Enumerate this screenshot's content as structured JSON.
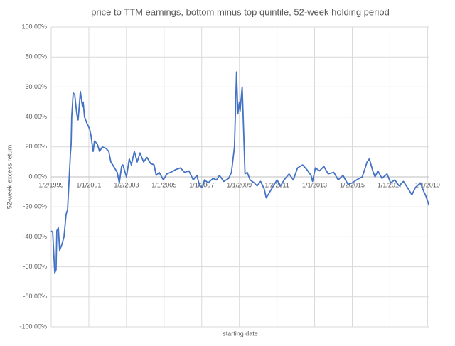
{
  "chart_data": {
    "type": "line",
    "title": "price to TTM earnings, bottom minus top quintile, 52-week holding period",
    "xlabel": "starting date",
    "ylabel": "52-week excess return",
    "x": [
      1999.0,
      1999.08,
      1999.19,
      1999.26,
      1999.3,
      1999.38,
      1999.45,
      1999.57,
      1999.68,
      1999.79,
      1999.87,
      2000.02,
      2000.06,
      2000.09,
      2000.17,
      2000.25,
      2000.36,
      2000.43,
      2000.51,
      2000.55,
      2000.66,
      2000.7,
      2000.77,
      2000.89,
      2001.04,
      2001.11,
      2001.23,
      2001.3,
      2001.45,
      2001.57,
      2001.72,
      2001.91,
      2002.06,
      2002.17,
      2002.32,
      2002.51,
      2002.62,
      2002.74,
      2002.81,
      2003.0,
      2003.15,
      2003.26,
      2003.42,
      2003.57,
      2003.72,
      2003.91,
      2004.09,
      2004.28,
      2004.47,
      2004.58,
      2004.74,
      2004.96,
      2005.15,
      2005.34,
      2005.64,
      2005.87,
      2006.09,
      2006.32,
      2006.55,
      2006.74,
      2006.89,
      2007.04,
      2007.15,
      2007.34,
      2007.6,
      2007.79,
      2007.94,
      2008.17,
      2008.43,
      2008.58,
      2008.74,
      2008.85,
      2008.92,
      2009.0,
      2009.04,
      2009.15,
      2009.23,
      2009.3,
      2009.42,
      2009.57,
      2009.79,
      2009.94,
      2010.13,
      2010.32,
      2010.43,
      2010.62,
      2010.81,
      2011.0,
      2011.19,
      2011.38,
      2011.64,
      2011.87,
      2012.09,
      2012.36,
      2012.58,
      2012.81,
      2012.89,
      2013.04,
      2013.26,
      2013.49,
      2013.72,
      2014.02,
      2014.25,
      2014.51,
      2014.77,
      2015.0,
      2015.23,
      2015.53,
      2015.79,
      2015.91,
      2016.09,
      2016.21,
      2016.36,
      2016.58,
      2016.85,
      2017.04,
      2017.26,
      2017.49,
      2017.72,
      2017.98,
      2018.17,
      2018.36,
      2018.62,
      2018.81,
      2018.92,
      2019.08
    ],
    "series": [
      {
        "name": "52-week excess return",
        "color": "#4472c4",
        "values": [
          -36,
          -37,
          -64,
          -62,
          -36,
          -34,
          -49,
          -45,
          -40,
          -25,
          -22,
          15,
          22,
          40,
          56,
          55,
          42,
          38,
          50,
          57,
          47,
          50,
          40,
          36,
          32,
          28,
          17,
          24,
          22,
          17,
          20,
          19,
          17,
          10,
          7,
          3,
          -4,
          7,
          8,
          0,
          12,
          8,
          17,
          10,
          16,
          10,
          13,
          9,
          8,
          1,
          3,
          -2,
          2,
          3,
          5,
          6,
          3,
          4,
          -2,
          1,
          -6,
          -7,
          -2,
          -4,
          -1,
          -2,
          1,
          -3,
          -1,
          3,
          20,
          70,
          42,
          50,
          44,
          60,
          30,
          2,
          3,
          -2,
          -4,
          -6,
          -3,
          -8,
          -14,
          -10,
          -6,
          -2,
          -6,
          -2,
          2,
          -2,
          6,
          8,
          5,
          1,
          -3,
          6,
          4,
          7,
          2,
          3,
          -2,
          1,
          -5,
          -4,
          -2,
          0,
          10,
          12,
          4,
          0,
          4,
          -1,
          2,
          -4,
          -2,
          -6,
          -3,
          -8,
          -12,
          -7,
          -4,
          -10,
          -13,
          -19
        ]
      }
    ],
    "xlim": [
      1999,
      2019.1
    ],
    "xticks": [
      {
        "value": 1999,
        "label": "1/2/1999"
      },
      {
        "value": 2001,
        "label": "1/1/2001"
      },
      {
        "value": 2003,
        "label": "1/2/2003"
      },
      {
        "value": 2005,
        "label": "1/1/2005"
      },
      {
        "value": 2007,
        "label": "1/1/2007"
      },
      {
        "value": 2009,
        "label": "1/1/2009"
      },
      {
        "value": 2011,
        "label": "1/2/2011"
      },
      {
        "value": 2013,
        "label": "1/1/2013"
      },
      {
        "value": 2015,
        "label": "1/2/2015"
      },
      {
        "value": 2017,
        "label": "1/1/2017"
      },
      {
        "value": 2019,
        "label": "1/1/2019"
      }
    ],
    "ylim": [
      -100,
      100
    ],
    "yticks": [
      {
        "value": -100,
        "label": "-100.00%"
      },
      {
        "value": -80,
        "label": "-80.00%"
      },
      {
        "value": -60,
        "label": "-60.00%"
      },
      {
        "value": -40,
        "label": "-40.00%"
      },
      {
        "value": -20,
        "label": "-20.00%"
      },
      {
        "value": 0,
        "label": "0.00%"
      },
      {
        "value": 20,
        "label": "20.00%"
      },
      {
        "value": 40,
        "label": "40.00%"
      },
      {
        "value": 60,
        "label": "60.00%"
      },
      {
        "value": 80,
        "label": "80.00%"
      },
      {
        "value": 100,
        "label": "100.00%"
      }
    ],
    "grid": true
  }
}
